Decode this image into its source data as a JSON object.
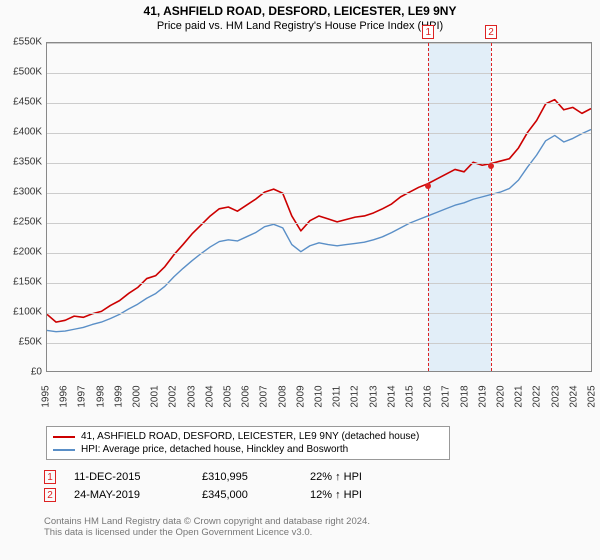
{
  "header": {
    "title": "41, ASHFIELD ROAD, DESFORD, LEICESTER, LE9 9NY",
    "subtitle": "Price paid vs. HM Land Registry's House Price Index (HPI)"
  },
  "chart": {
    "type": "line",
    "background_color": "#fafafa",
    "plot_border_color": "#888888",
    "grid_color": "#cccccc",
    "y": {
      "min": 0,
      "max": 550,
      "step": 50,
      "ticks": [
        "£0",
        "£50K",
        "£100K",
        "£150K",
        "£200K",
        "£250K",
        "£300K",
        "£350K",
        "£400K",
        "£450K",
        "£500K",
        "£550K"
      ]
    },
    "x": {
      "years": [
        1995,
        1996,
        1997,
        1998,
        1999,
        2000,
        2001,
        2002,
        2003,
        2004,
        2005,
        2006,
        2007,
        2008,
        2009,
        2010,
        2011,
        2012,
        2013,
        2014,
        2015,
        2016,
        2017,
        2018,
        2019,
        2020,
        2021,
        2022,
        2023,
        2024,
        2025
      ],
      "labels": [
        "1995",
        "1996",
        "1997",
        "1998",
        "1999",
        "2000",
        "2001",
        "2002",
        "2003",
        "2004",
        "2005",
        "2006",
        "2007",
        "2008",
        "2009",
        "2010",
        "2011",
        "2012",
        "2013",
        "2014",
        "2015",
        "2016",
        "2017",
        "2018",
        "2019",
        "2020",
        "2021",
        "2022",
        "2023",
        "2024",
        "2025"
      ]
    },
    "highlight_band": {
      "from": 2015.95,
      "to": 2019.4,
      "color": "#e2eef8"
    },
    "markers": [
      {
        "num": "1",
        "x": 2015.95,
        "y": 311,
        "color": "#d22"
      },
      {
        "num": "2",
        "x": 2019.4,
        "y": 345,
        "color": "#d22"
      }
    ],
    "series": [
      {
        "name": "price_paid",
        "color": "#cc0000",
        "width": 1.6,
        "points": [
          [
            1995,
            95
          ],
          [
            1995.5,
            82
          ],
          [
            1996,
            85
          ],
          [
            1996.5,
            92
          ],
          [
            1997,
            90
          ],
          [
            1997.5,
            96
          ],
          [
            1998,
            100
          ],
          [
            1998.5,
            110
          ],
          [
            1999,
            118
          ],
          [
            1999.5,
            130
          ],
          [
            2000,
            140
          ],
          [
            2000.5,
            155
          ],
          [
            2001,
            160
          ],
          [
            2001.5,
            175
          ],
          [
            2002,
            195
          ],
          [
            2002.5,
            212
          ],
          [
            2003,
            230
          ],
          [
            2003.5,
            245
          ],
          [
            2004,
            260
          ],
          [
            2004.5,
            272
          ],
          [
            2005,
            275
          ],
          [
            2005.5,
            268
          ],
          [
            2006,
            278
          ],
          [
            2006.5,
            288
          ],
          [
            2007,
            300
          ],
          [
            2007.5,
            305
          ],
          [
            2008,
            298
          ],
          [
            2008.5,
            260
          ],
          [
            2009,
            235
          ],
          [
            2009.5,
            252
          ],
          [
            2010,
            260
          ],
          [
            2010.5,
            255
          ],
          [
            2011,
            250
          ],
          [
            2011.5,
            254
          ],
          [
            2012,
            258
          ],
          [
            2012.5,
            260
          ],
          [
            2013,
            265
          ],
          [
            2013.5,
            272
          ],
          [
            2014,
            280
          ],
          [
            2014.5,
            292
          ],
          [
            2015,
            300
          ],
          [
            2015.5,
            308
          ],
          [
            2016,
            314
          ],
          [
            2016.5,
            322
          ],
          [
            2017,
            330
          ],
          [
            2017.5,
            338
          ],
          [
            2018,
            334
          ],
          [
            2018.5,
            350
          ],
          [
            2019,
            345
          ],
          [
            2019.5,
            348
          ],
          [
            2020,
            352
          ],
          [
            2020.5,
            356
          ],
          [
            2021,
            374
          ],
          [
            2021.5,
            400
          ],
          [
            2022,
            420
          ],
          [
            2022.5,
            448
          ],
          [
            2023,
            455
          ],
          [
            2023.5,
            438
          ],
          [
            2024,
            442
          ],
          [
            2024.5,
            432
          ],
          [
            2025,
            440
          ]
        ]
      },
      {
        "name": "hpi",
        "color": "#5a8fc7",
        "width": 1.4,
        "points": [
          [
            1995,
            68
          ],
          [
            1995.5,
            66
          ],
          [
            1996,
            67
          ],
          [
            1996.5,
            70
          ],
          [
            1997,
            73
          ],
          [
            1997.5,
            78
          ],
          [
            1998,
            82
          ],
          [
            1998.5,
            88
          ],
          [
            1999,
            95
          ],
          [
            1999.5,
            104
          ],
          [
            2000,
            112
          ],
          [
            2000.5,
            122
          ],
          [
            2001,
            130
          ],
          [
            2001.5,
            142
          ],
          [
            2002,
            158
          ],
          [
            2002.5,
            172
          ],
          [
            2003,
            185
          ],
          [
            2003.5,
            197
          ],
          [
            2004,
            208
          ],
          [
            2004.5,
            217
          ],
          [
            2005,
            220
          ],
          [
            2005.5,
            218
          ],
          [
            2006,
            225
          ],
          [
            2006.5,
            232
          ],
          [
            2007,
            242
          ],
          [
            2007.5,
            246
          ],
          [
            2008,
            240
          ],
          [
            2008.5,
            212
          ],
          [
            2009,
            200
          ],
          [
            2009.5,
            210
          ],
          [
            2010,
            215
          ],
          [
            2010.5,
            212
          ],
          [
            2011,
            210
          ],
          [
            2011.5,
            212
          ],
          [
            2012,
            214
          ],
          [
            2012.5,
            216
          ],
          [
            2013,
            220
          ],
          [
            2013.5,
            225
          ],
          [
            2014,
            232
          ],
          [
            2014.5,
            240
          ],
          [
            2015,
            248
          ],
          [
            2015.5,
            254
          ],
          [
            2016,
            260
          ],
          [
            2016.5,
            266
          ],
          [
            2017,
            272
          ],
          [
            2017.5,
            278
          ],
          [
            2018,
            282
          ],
          [
            2018.5,
            288
          ],
          [
            2019,
            292
          ],
          [
            2019.5,
            296
          ],
          [
            2020,
            300
          ],
          [
            2020.5,
            306
          ],
          [
            2021,
            320
          ],
          [
            2021.5,
            342
          ],
          [
            2022,
            362
          ],
          [
            2022.5,
            386
          ],
          [
            2023,
            395
          ],
          [
            2023.5,
            384
          ],
          [
            2024,
            390
          ],
          [
            2024.5,
            398
          ],
          [
            2025,
            405
          ]
        ]
      }
    ]
  },
  "legend": {
    "items": [
      {
        "color": "#cc0000",
        "label": "41, ASHFIELD ROAD, DESFORD, LEICESTER, LE9 9NY (detached house)"
      },
      {
        "color": "#5a8fc7",
        "label": "HPI: Average price, detached house, Hinckley and Bosworth"
      }
    ]
  },
  "sales": [
    {
      "num": "1",
      "date": "11-DEC-2015",
      "price": "£310,995",
      "diff": "22% ↑ HPI"
    },
    {
      "num": "2",
      "date": "24-MAY-2019",
      "price": "£345,000",
      "diff": "12% ↑ HPI"
    }
  ],
  "attribution": {
    "line1": "Contains HM Land Registry data © Crown copyright and database right 2024.",
    "line2": "This data is licensed under the Open Government Licence v3.0."
  }
}
